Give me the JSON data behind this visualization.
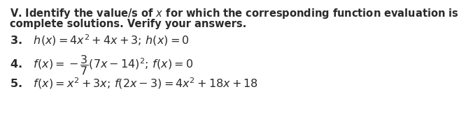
{
  "bg_color": "#ffffff",
  "text_color": "#2a2a2a",
  "title_line1": "V. Identify the value/s of $x$ for which the corresponding function evaluation is true. Show",
  "title_line2": "complete solutions. Verify your answers.",
  "item3": "3.   $h(x) = 4x^2 + 4x + 3;\\, h(x) = 0$",
  "item4": "4.   $f(x) = -\\dfrac{3}{7}(7x - 14)^2;\\, f(x) = 0$",
  "item5": "5.   $f(x) = x^2 + 3x;\\, f(2x - 3) = 4x^2 + 18x + 18$",
  "font_size_header": 10.5,
  "font_size_items": 11.5,
  "fig_width": 6.56,
  "fig_height": 1.68,
  "dpi": 100
}
